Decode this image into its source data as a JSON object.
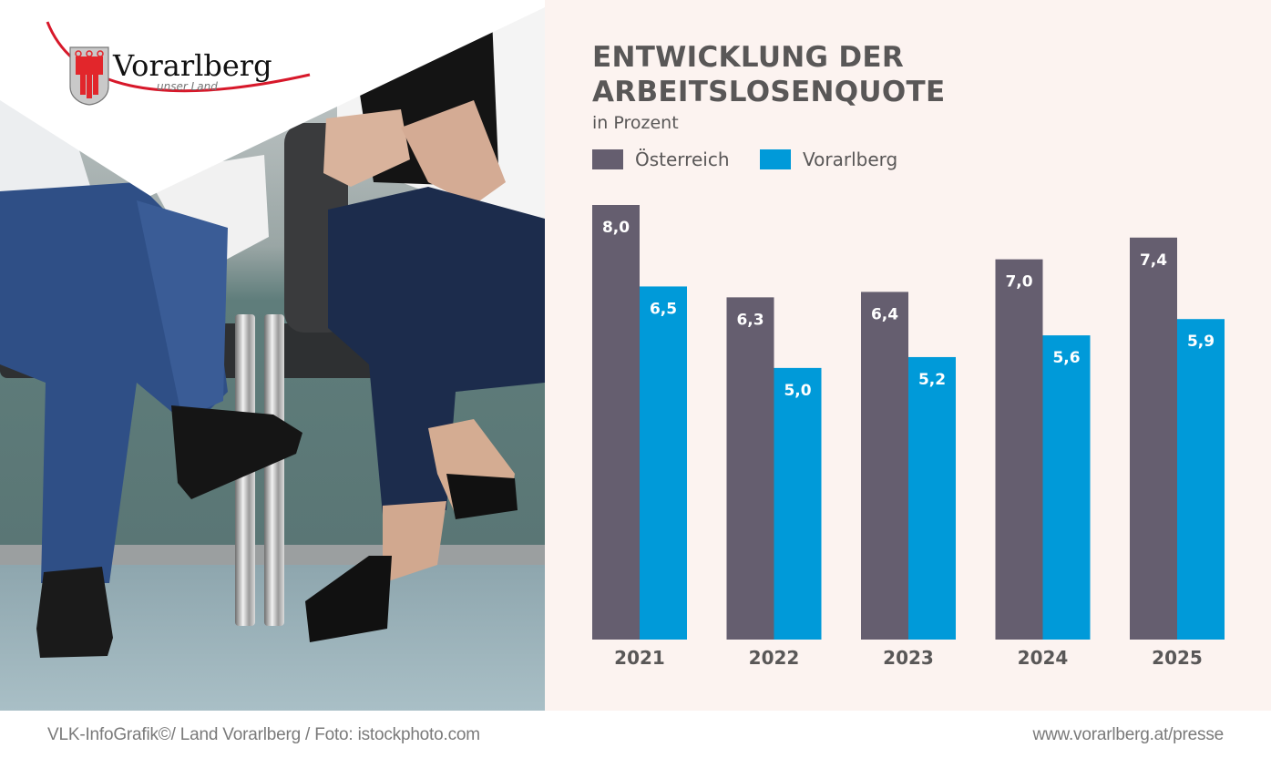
{
  "logo": {
    "name": "Vorarlberg",
    "tagline": "unser Land"
  },
  "footer": {
    "credit": "VLK-InfoGrafik©/ Land Vorarlberg / Foto: istockphoto.com",
    "url": "www.vorarlberg.at/presse"
  },
  "colors": {
    "oesterreich": "#655e6f",
    "vorarlberg": "#009ad9",
    "panel_background": "#fcf3f0",
    "text": "#595757",
    "logo_red": "#d7182a"
  },
  "chart_data": {
    "type": "bar",
    "title": "ENTWICKLUNG DER ARBEITSLOSENQUOTE",
    "title_lines": [
      "ENTWICKLUNG DER",
      "ARBEITSLOSENQUOTE"
    ],
    "subtitle": "in Prozent",
    "xlabel": "",
    "ylabel": "",
    "ylim": [
      0,
      8.0
    ],
    "grid": false,
    "legend_position": "top-left",
    "categories": [
      "2021",
      "2022",
      "2023",
      "2024",
      "2025"
    ],
    "series": [
      {
        "name": "Österreich",
        "color": "#655e6f",
        "values": [
          8.0,
          6.3,
          6.4,
          7.0,
          7.4
        ],
        "labels": [
          "8,0",
          "6,3",
          "6,4",
          "7,0",
          "7,4"
        ]
      },
      {
        "name": "Vorarlberg",
        "color": "#009ad9",
        "values": [
          6.5,
          5.0,
          5.2,
          5.6,
          5.9
        ],
        "labels": [
          "6,5",
          "5,0",
          "5,2",
          "5,6",
          "5,9"
        ]
      }
    ]
  }
}
